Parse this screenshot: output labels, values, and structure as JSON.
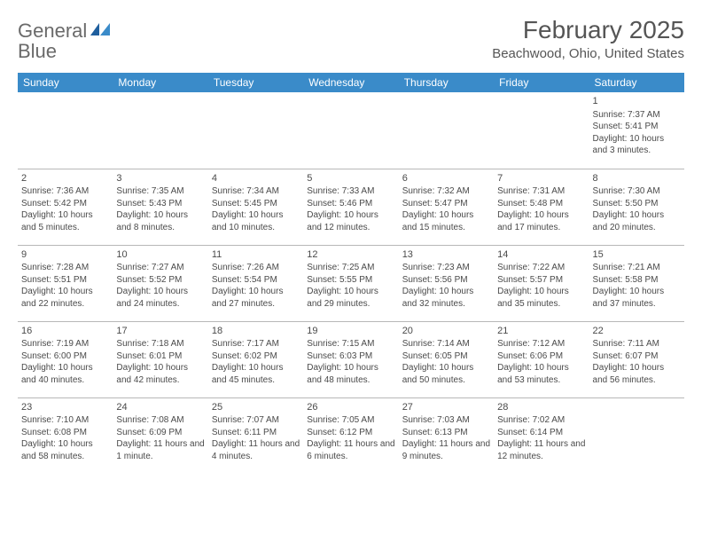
{
  "logo": {
    "part1": "General",
    "part2": "Blue"
  },
  "title": "February 2025",
  "location": "Beachwood, Ohio, United States",
  "header_bg": "#3a8bc9",
  "header_fg": "#ffffff",
  "border_color": "#b8b8b8",
  "text_color": "#4a4a4a",
  "weekdays": [
    "Sunday",
    "Monday",
    "Tuesday",
    "Wednesday",
    "Thursday",
    "Friday",
    "Saturday"
  ],
  "weeks": [
    [
      null,
      null,
      null,
      null,
      null,
      null,
      {
        "d": "1",
        "sr": "Sunrise: 7:37 AM",
        "ss": "Sunset: 5:41 PM",
        "dl": "Daylight: 10 hours and 3 minutes."
      }
    ],
    [
      {
        "d": "2",
        "sr": "Sunrise: 7:36 AM",
        "ss": "Sunset: 5:42 PM",
        "dl": "Daylight: 10 hours and 5 minutes."
      },
      {
        "d": "3",
        "sr": "Sunrise: 7:35 AM",
        "ss": "Sunset: 5:43 PM",
        "dl": "Daylight: 10 hours and 8 minutes."
      },
      {
        "d": "4",
        "sr": "Sunrise: 7:34 AM",
        "ss": "Sunset: 5:45 PM",
        "dl": "Daylight: 10 hours and 10 minutes."
      },
      {
        "d": "5",
        "sr": "Sunrise: 7:33 AM",
        "ss": "Sunset: 5:46 PM",
        "dl": "Daylight: 10 hours and 12 minutes."
      },
      {
        "d": "6",
        "sr": "Sunrise: 7:32 AM",
        "ss": "Sunset: 5:47 PM",
        "dl": "Daylight: 10 hours and 15 minutes."
      },
      {
        "d": "7",
        "sr": "Sunrise: 7:31 AM",
        "ss": "Sunset: 5:48 PM",
        "dl": "Daylight: 10 hours and 17 minutes."
      },
      {
        "d": "8",
        "sr": "Sunrise: 7:30 AM",
        "ss": "Sunset: 5:50 PM",
        "dl": "Daylight: 10 hours and 20 minutes."
      }
    ],
    [
      {
        "d": "9",
        "sr": "Sunrise: 7:28 AM",
        "ss": "Sunset: 5:51 PM",
        "dl": "Daylight: 10 hours and 22 minutes."
      },
      {
        "d": "10",
        "sr": "Sunrise: 7:27 AM",
        "ss": "Sunset: 5:52 PM",
        "dl": "Daylight: 10 hours and 24 minutes."
      },
      {
        "d": "11",
        "sr": "Sunrise: 7:26 AM",
        "ss": "Sunset: 5:54 PM",
        "dl": "Daylight: 10 hours and 27 minutes."
      },
      {
        "d": "12",
        "sr": "Sunrise: 7:25 AM",
        "ss": "Sunset: 5:55 PM",
        "dl": "Daylight: 10 hours and 29 minutes."
      },
      {
        "d": "13",
        "sr": "Sunrise: 7:23 AM",
        "ss": "Sunset: 5:56 PM",
        "dl": "Daylight: 10 hours and 32 minutes."
      },
      {
        "d": "14",
        "sr": "Sunrise: 7:22 AM",
        "ss": "Sunset: 5:57 PM",
        "dl": "Daylight: 10 hours and 35 minutes."
      },
      {
        "d": "15",
        "sr": "Sunrise: 7:21 AM",
        "ss": "Sunset: 5:58 PM",
        "dl": "Daylight: 10 hours and 37 minutes."
      }
    ],
    [
      {
        "d": "16",
        "sr": "Sunrise: 7:19 AM",
        "ss": "Sunset: 6:00 PM",
        "dl": "Daylight: 10 hours and 40 minutes."
      },
      {
        "d": "17",
        "sr": "Sunrise: 7:18 AM",
        "ss": "Sunset: 6:01 PM",
        "dl": "Daylight: 10 hours and 42 minutes."
      },
      {
        "d": "18",
        "sr": "Sunrise: 7:17 AM",
        "ss": "Sunset: 6:02 PM",
        "dl": "Daylight: 10 hours and 45 minutes."
      },
      {
        "d": "19",
        "sr": "Sunrise: 7:15 AM",
        "ss": "Sunset: 6:03 PM",
        "dl": "Daylight: 10 hours and 48 minutes."
      },
      {
        "d": "20",
        "sr": "Sunrise: 7:14 AM",
        "ss": "Sunset: 6:05 PM",
        "dl": "Daylight: 10 hours and 50 minutes."
      },
      {
        "d": "21",
        "sr": "Sunrise: 7:12 AM",
        "ss": "Sunset: 6:06 PM",
        "dl": "Daylight: 10 hours and 53 minutes."
      },
      {
        "d": "22",
        "sr": "Sunrise: 7:11 AM",
        "ss": "Sunset: 6:07 PM",
        "dl": "Daylight: 10 hours and 56 minutes."
      }
    ],
    [
      {
        "d": "23",
        "sr": "Sunrise: 7:10 AM",
        "ss": "Sunset: 6:08 PM",
        "dl": "Daylight: 10 hours and 58 minutes."
      },
      {
        "d": "24",
        "sr": "Sunrise: 7:08 AM",
        "ss": "Sunset: 6:09 PM",
        "dl": "Daylight: 11 hours and 1 minute."
      },
      {
        "d": "25",
        "sr": "Sunrise: 7:07 AM",
        "ss": "Sunset: 6:11 PM",
        "dl": "Daylight: 11 hours and 4 minutes."
      },
      {
        "d": "26",
        "sr": "Sunrise: 7:05 AM",
        "ss": "Sunset: 6:12 PM",
        "dl": "Daylight: 11 hours and 6 minutes."
      },
      {
        "d": "27",
        "sr": "Sunrise: 7:03 AM",
        "ss": "Sunset: 6:13 PM",
        "dl": "Daylight: 11 hours and 9 minutes."
      },
      {
        "d": "28",
        "sr": "Sunrise: 7:02 AM",
        "ss": "Sunset: 6:14 PM",
        "dl": "Daylight: 11 hours and 12 minutes."
      },
      null
    ]
  ]
}
